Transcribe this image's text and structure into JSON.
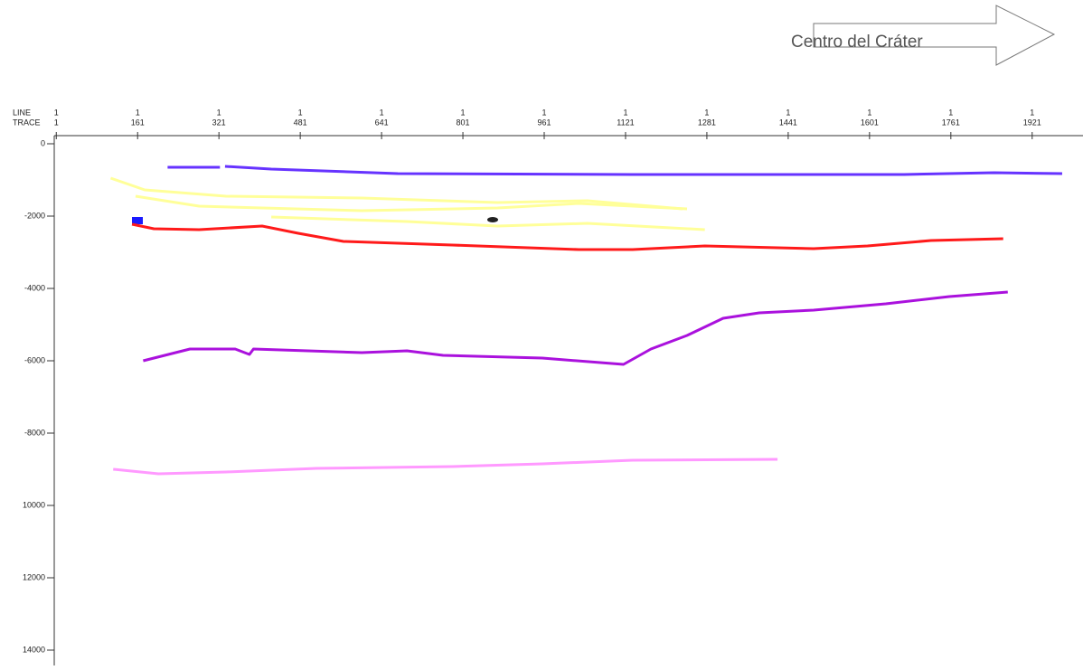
{
  "annotation": "Centro del Cráter",
  "chart_data": {
    "type": "line",
    "x_header": [
      "LINE",
      "TRACE"
    ],
    "xlim": [
      -3,
      2021
    ],
    "xticks": [
      1,
      161,
      321,
      481,
      641,
      801,
      961,
      1121,
      1281,
      1441,
      1601,
      1761,
      1921
    ],
    "xtick_lines": [
      "1",
      "1",
      "1",
      "1",
      "1",
      "1",
      "1",
      "1",
      "1",
      "1",
      "1",
      "1",
      "1"
    ],
    "ylim": [
      0,
      -14400
    ],
    "yticks": [
      0,
      -2000,
      -4000,
      -6000,
      -8000,
      {
        "value": -10000,
        "label": "10000"
      },
      {
        "value": -12000,
        "label": "12000"
      },
      {
        "value": -14000,
        "label": "14000"
      }
    ],
    "series": [
      {
        "color": "#6633ff",
        "x": [
          220,
          323,
          328,
          333,
          424,
          673,
          1135,
          1491,
          1669,
          1846,
          1980
        ],
        "values": [
          -650,
          -650,
          null,
          -625,
          -700,
          -825,
          -850,
          -850,
          -850,
          -800,
          -825
        ]
      },
      {
        "color": "#ffff99",
        "x": [
          108,
          175,
          335,
          602,
          869,
          1046,
          1233
        ],
        "values": [
          -950,
          -1275,
          -1450,
          -1500,
          -1625,
          -1575,
          -1800
        ]
      },
      {
        "color": "#ffff99",
        "x": [
          157,
          282,
          602,
          869,
          1029,
          1242
        ],
        "values": [
          -1450,
          -1725,
          -1850,
          -1775,
          -1650,
          -1800
        ]
      },
      {
        "color": "#ffff99",
        "x": [
          424,
          691,
          869,
          1046,
          1277
        ],
        "values": [
          -2025,
          -2150,
          -2275,
          -2200,
          -2375
        ]
      },
      {
        "color": "#ff1a1a",
        "x": [
          150,
          193,
          282,
          406,
          477,
          566,
          780,
          1029,
          1135,
          1277,
          1491,
          1597,
          1722,
          1864
        ],
        "values": [
          -2225,
          -2350,
          -2375,
          -2275,
          -2475,
          -2700,
          -2800,
          -2925,
          -2925,
          -2825,
          -2900,
          -2825,
          -2675,
          -2625
        ]
      },
      {
        "color": "#aa11dd",
        "x": [
          172,
          264,
          353,
          381,
          389,
          602,
          691,
          762,
          957,
          1117,
          1171,
          1242,
          1313,
          1384,
          1491,
          1633,
          1758,
          1873
        ],
        "values": [
          -6000,
          -5675,
          -5675,
          -5825,
          -5675,
          -5775,
          -5725,
          -5850,
          -5925,
          -6100,
          -5675,
          -5300,
          -4825,
          -4675,
          -4600,
          -4425,
          -4225,
          -4100
        ]
      },
      {
        "color": "#ff99ff",
        "x": [
          113,
          202,
          335,
          513,
          780,
          957,
          1135,
          1420
        ],
        "values": [
          -9000,
          -9125,
          -9075,
          -8975,
          -8925,
          -8850,
          -8750,
          -8725
        ]
      }
    ]
  }
}
